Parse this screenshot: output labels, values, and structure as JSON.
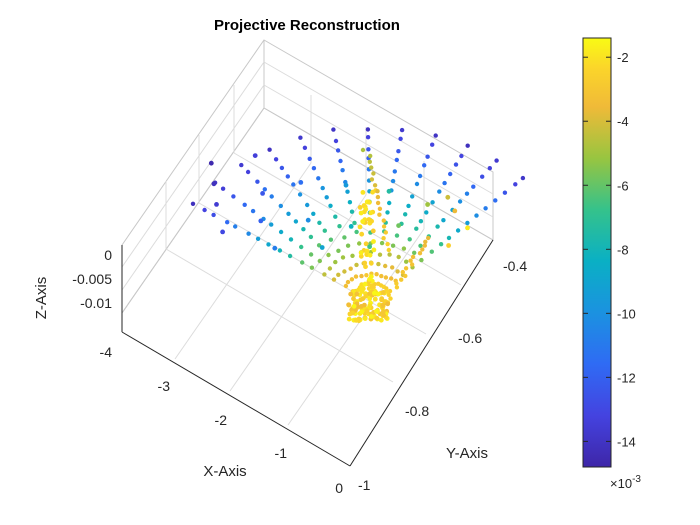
{
  "chart_data": {
    "type": "scatter",
    "title": "Projective Reconstruction",
    "xlabel": "X-Axis",
    "ylabel": "Y-Axis",
    "zlabel": "Z-Axis",
    "xticks": [
      -4,
      -3,
      -2,
      -1,
      0
    ],
    "xtick_labels": [
      "-4",
      "-3",
      "-2",
      "-1",
      "0"
    ],
    "yticks": [
      -1,
      -0.8,
      -0.6,
      -0.4
    ],
    "ytick_labels": [
      "-1",
      "-0.8",
      "-0.6",
      "-0.4"
    ],
    "zticks": [
      -0.01,
      -0.005,
      0
    ],
    "ztick_labels": [
      "-0.01",
      "-0.005",
      "0"
    ],
    "xlim": [
      -4,
      0
    ],
    "ylim": [
      -1,
      -0.35
    ],
    "zlim": [
      -0.012,
      0.012
    ],
    "grid": true,
    "view": "3d",
    "colormap": "parula",
    "colorbar": {
      "ticks": [
        -14,
        -12,
        -10,
        -8,
        -6,
        -4,
        -2
      ],
      "tick_labels": [
        "-14",
        "-12",
        "-10",
        "-8",
        "-6",
        "-4",
        "-2"
      ],
      "exponent_label": "×10",
      "exponent_power": "-3",
      "range": [
        -14.8,
        -1.4
      ]
    },
    "series": [
      {
        "marker": "filled circle",
        "points_sampled": [
          {
            "x": -3.9,
            "y": -0.62,
            "c": -14.6
          },
          {
            "x": -3.7,
            "y": -0.66,
            "c": -14.2
          },
          {
            "x": -3.5,
            "y": -0.7,
            "c": -13.6
          },
          {
            "x": -3.4,
            "y": -0.55,
            "c": -13.4
          },
          {
            "x": -3.2,
            "y": -0.75,
            "c": -13.0
          },
          {
            "x": -3.0,
            "y": -0.62,
            "c": -12.4
          },
          {
            "x": -2.8,
            "y": -0.68,
            "c": -12.0
          },
          {
            "x": -2.6,
            "y": -0.55,
            "c": -11.4
          },
          {
            "x": -2.4,
            "y": -0.72,
            "c": -10.8
          },
          {
            "x": -2.2,
            "y": -0.62,
            "c": -10.2
          },
          {
            "x": -2.0,
            "y": -0.5,
            "c": -9.6
          },
          {
            "x": -1.8,
            "y": -0.66,
            "c": -9.0
          },
          {
            "x": -1.6,
            "y": -0.58,
            "c": -8.2
          },
          {
            "x": -1.4,
            "y": -0.46,
            "c": -7.4
          },
          {
            "x": -1.2,
            "y": -0.6,
            "c": -6.6
          },
          {
            "x": -1.0,
            "y": -0.52,
            "c": -5.8
          },
          {
            "x": -0.8,
            "y": -0.44,
            "c": -5.0
          },
          {
            "x": -0.6,
            "y": -0.4,
            "c": -4.2
          },
          {
            "x": -0.4,
            "y": -0.42,
            "c": -3.6
          },
          {
            "x": -0.2,
            "y": -0.5,
            "c": -2.6
          },
          {
            "x": -0.1,
            "y": -0.44,
            "c": -1.8
          }
        ]
      }
    ]
  }
}
